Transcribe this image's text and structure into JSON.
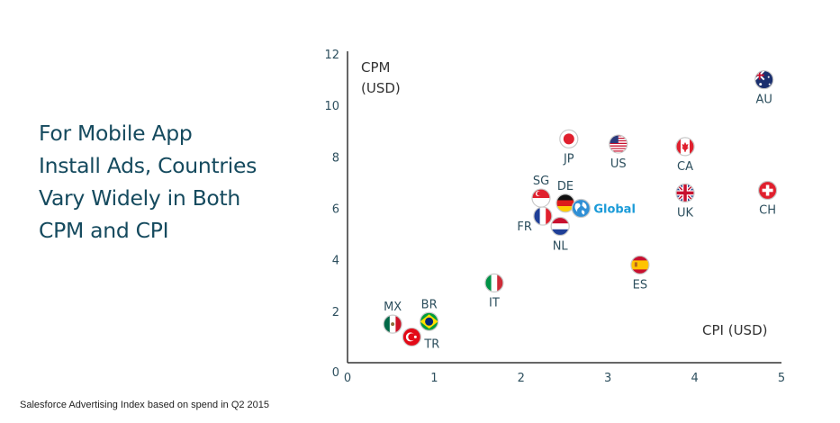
{
  "headline": "For Mobile App\nInstall Ads, Countries\nVary Widely in Both\nCPM and CPI",
  "source_note": "Salesforce Advertising Index based on spend in Q2 2015",
  "chart_data": {
    "type": "scatter",
    "title": "For Mobile App Install Ads, Countries Vary Widely in Both CPM and CPI",
    "xlabel": "CPI (USD)",
    "ylabel_lines": [
      "CPM",
      "(USD)"
    ],
    "xlim": [
      0,
      5
    ],
    "ylim": [
      0,
      12
    ],
    "x_ticks": [
      "0",
      "1",
      "2",
      "3",
      "4",
      "5"
    ],
    "y_ticks": [
      "0",
      "2",
      "4",
      "6",
      "8",
      "10",
      "12"
    ],
    "grid": false,
    "points": [
      {
        "label": "AU",
        "x": 4.8,
        "y": 11.0,
        "icon": "flag-australia-icon",
        "label_pos": "below"
      },
      {
        "label": "JP",
        "x": 2.55,
        "y": 8.7,
        "icon": "flag-japan-icon",
        "label_pos": "below"
      },
      {
        "label": "US",
        "x": 3.12,
        "y": 8.5,
        "icon": "flag-usa-icon",
        "label_pos": "below"
      },
      {
        "label": "CA",
        "x": 3.89,
        "y": 8.4,
        "icon": "flag-canada-icon",
        "label_pos": "below"
      },
      {
        "label": "UK",
        "x": 3.89,
        "y": 6.6,
        "icon": "flag-uk-icon",
        "label_pos": "below"
      },
      {
        "label": "CH",
        "x": 4.84,
        "y": 6.7,
        "icon": "flag-switzerland-icon",
        "label_pos": "below"
      },
      {
        "label": "SG",
        "x": 2.23,
        "y": 6.4,
        "icon": "flag-singapore-icon",
        "label_pos": "above"
      },
      {
        "label": "DE",
        "x": 2.51,
        "y": 6.2,
        "icon": "flag-germany-icon",
        "label_pos": "above"
      },
      {
        "label": "Global",
        "x": 2.69,
        "y": 6.0,
        "icon": "globe-icon",
        "label_pos": "right"
      },
      {
        "label": "FR",
        "x": 2.25,
        "y": 5.7,
        "icon": "flag-france-icon",
        "label_pos": "below-left"
      },
      {
        "label": "NL",
        "x": 2.45,
        "y": 5.3,
        "icon": "flag-netherlands-icon",
        "label_pos": "below"
      },
      {
        "label": "ES",
        "x": 3.37,
        "y": 3.8,
        "icon": "flag-spain-icon",
        "label_pos": "below"
      },
      {
        "label": "IT",
        "x": 1.69,
        "y": 3.1,
        "icon": "flag-italy-icon",
        "label_pos": "below"
      },
      {
        "label": "MX",
        "x": 0.52,
        "y": 1.5,
        "icon": "flag-mexico-icon",
        "label_pos": "above"
      },
      {
        "label": "BR",
        "x": 0.94,
        "y": 1.6,
        "icon": "flag-brazil-icon",
        "label_pos": "above"
      },
      {
        "label": "TR",
        "x": 0.74,
        "y": 1.0,
        "icon": "flag-turkey-icon",
        "label_pos": "below-right"
      }
    ],
    "colors": {
      "axis": "#333333",
      "tick_text": "#2d4f5e",
      "global_label": "#1b9bd8",
      "headline": "#154a5e"
    }
  }
}
